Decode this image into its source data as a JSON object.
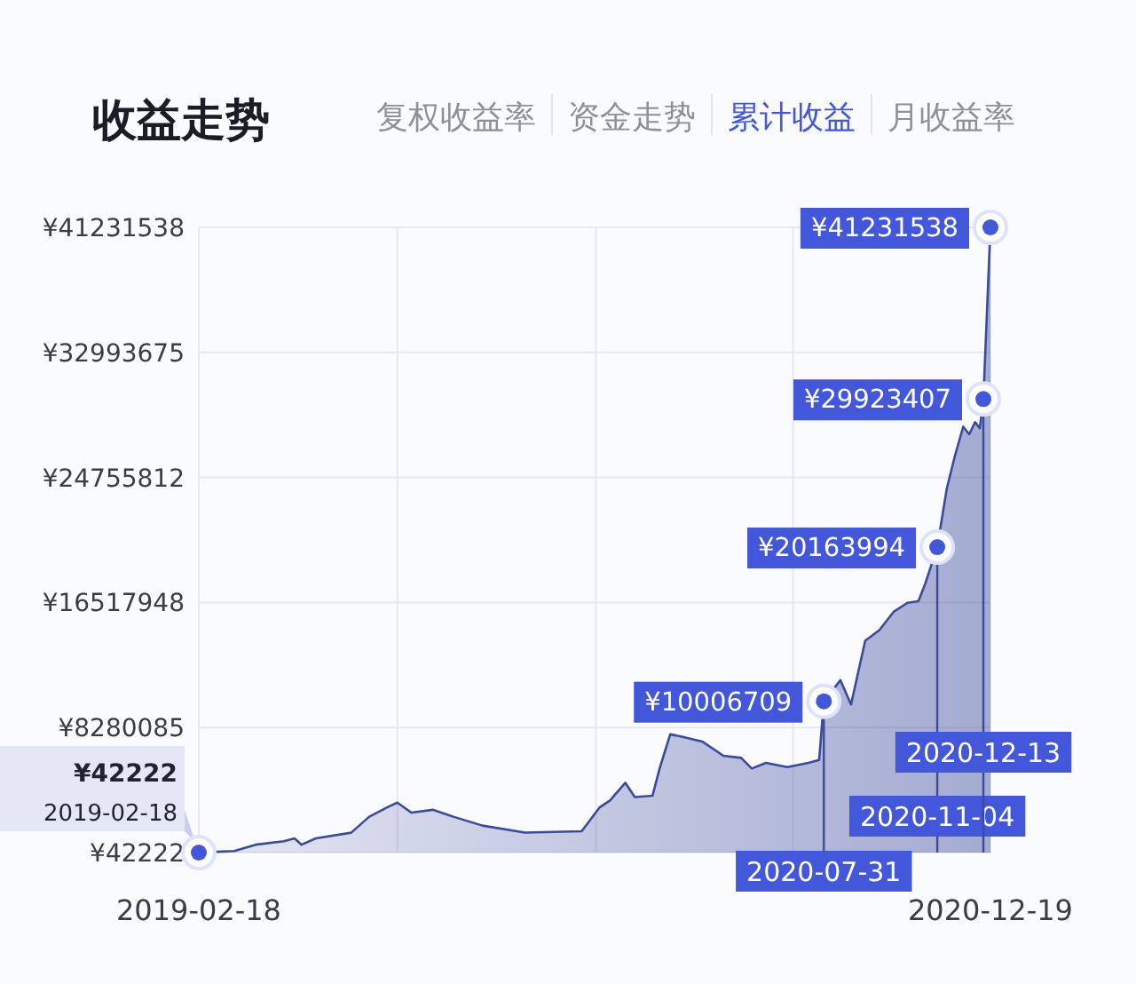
{
  "chart_data": {
    "type": "area",
    "title": "收益走势",
    "annotations": [
      "复权收益率",
      "资金走势",
      "月收益率",
      {
        "text": "¥42222",
        "x": "2019-02-18",
        "y": 42222
      },
      {
        "text": "2019-02-18",
        "x": "2019-02-18",
        "y": 42222
      },
      {
        "text": "¥10006709",
        "x": "2020-07-31",
        "y": 10006709
      },
      {
        "text": "¥20163994",
        "x": "2020-11-04",
        "y": 20163994
      },
      {
        "text": "¥29923407",
        "x": "2020-12-13",
        "y": 29923407
      },
      {
        "text": "¥41231538",
        "x": "2020-12-19",
        "y": 41231538
      }
    ],
    "x": [
      "2019-02-18",
      "2019-03-20",
      "2019-04-07",
      "2019-05-01",
      "2019-05-10",
      "2019-05-16",
      "2019-05-28",
      "2019-06-27",
      "2019-07-12",
      "2019-07-27",
      "2019-08-05",
      "2019-08-17",
      "2019-09-04",
      "2019-09-22",
      "2019-10-16",
      "2019-11-21",
      "2020-01-08",
      "2020-01-14",
      "2020-01-23",
      "2020-02-01",
      "2020-02-14",
      "2020-02-22",
      "2020-03-08",
      "2020-03-14",
      "2020-03-23",
      "2020-04-01",
      "2020-04-19",
      "2020-05-07",
      "2020-05-22",
      "2020-05-31",
      "2020-06-12",
      "2020-06-30",
      "2020-07-18",
      "2020-07-27",
      "2020-07-31",
      "2020-08-14",
      "2020-08-23",
      "2020-09-04",
      "2020-09-16",
      "2020-09-28",
      "2020-10-10",
      "2020-10-19",
      "2020-10-25",
      "2020-11-04",
      "2020-11-12",
      "2020-11-19",
      "2020-11-26",
      "2020-12-01",
      "2020-12-06",
      "2020-12-10",
      "2020-12-13",
      "2020-12-19"
    ],
    "series": [
      {
        "name": "累计收益",
        "color": "#3b4a9a",
        "values": [
          42222,
          140000,
          560000,
          790000,
          980000,
          560000,
          980000,
          1350000,
          2390000,
          3000000,
          3330000,
          2670000,
          2860000,
          2390000,
          1820000,
          1360000,
          1450000,
          2060000,
          3000000,
          3470000,
          4640000,
          3700000,
          3790000,
          5580000,
          7830000,
          7690000,
          7360000,
          6420000,
          6280000,
          5580000,
          5950000,
          5670000,
          5950000,
          6140000,
          10006709,
          11400000,
          9800000,
          14000000,
          14700000,
          15900000,
          16500000,
          16600000,
          17800000,
          20163994,
          24000000,
          26200000,
          28100000,
          27600000,
          28400000,
          28000000,
          29923407,
          41231538
        ]
      }
    ],
    "xlim": [
      "2019-02-18",
      "2020-12-19"
    ],
    "xticks": [
      {
        "value": "2019-02-18",
        "label": "2019-02-18"
      },
      {
        "value": "2019-08-05",
        "label": null
      },
      {
        "value": "2020-01-20",
        "label": null
      },
      {
        "value": "2020-07-05",
        "label": null
      },
      {
        "value": "2020-12-19",
        "label": "2020-12-19"
      }
    ],
    "ylim": [
      42222,
      41231538
    ],
    "yticks": [
      {
        "value": 42222,
        "label": "¥42222"
      },
      {
        "value": 8280085,
        "label": "¥8280085"
      },
      {
        "value": 16517948,
        "label": "¥16517948"
      },
      {
        "value": 24755812,
        "label": "¥24755812"
      },
      {
        "value": 32993675,
        "label": "¥32993675"
      },
      {
        "value": 41231538,
        "label": "¥41231538"
      }
    ],
    "ref_lines": [
      {
        "axis": "x",
        "value": "2020-07-31",
        "label": "2020-07-31"
      },
      {
        "axis": "x",
        "value": "2020-11-04",
        "label": "2020-11-04"
      },
      {
        "axis": "x",
        "value": "2020-12-13",
        "label": "2020-12-13"
      }
    ],
    "grid": true,
    "legend": "top",
    "marker": "none"
  }
}
